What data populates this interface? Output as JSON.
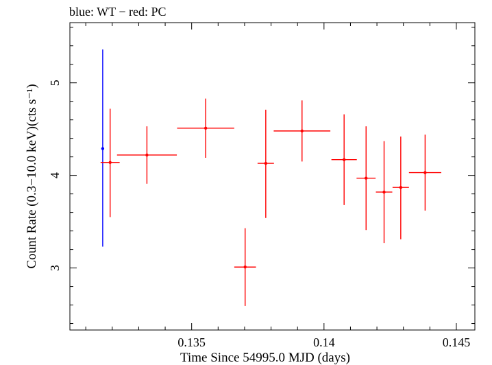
{
  "chart_data": {
    "type": "scatter",
    "title": "blue: WT − red: PC",
    "xlabel": "Time Since 54995.0 MJD (days)",
    "ylabel": "Count Rate (0.3−10.0 keV)(cts s⁻¹)",
    "xlim": [
      0.1304,
      0.1457
    ],
    "ylim": [
      2.33,
      5.65
    ],
    "xticks": [
      {
        "value": 0.135,
        "label": "0.135"
      },
      {
        "value": 0.14,
        "label": "0.14"
      },
      {
        "value": 0.145,
        "label": "0.145"
      }
    ],
    "yticks": [
      {
        "value": 3,
        "label": "3"
      },
      {
        "value": 4,
        "label": "4"
      },
      {
        "value": 5,
        "label": "5"
      }
    ],
    "grid": false,
    "series": [
      {
        "name": "WT",
        "color": "#0000ff",
        "points": [
          {
            "x": 0.13164,
            "y": 4.29,
            "xerr": 0.0,
            "yerr_low": 1.06,
            "yerr_high": 1.07
          }
        ]
      },
      {
        "name": "PC",
        "color": "#ff0000",
        "points": [
          {
            "x": 0.13192,
            "y": 4.14,
            "xerr": 0.00036,
            "yerr_low": 0.59,
            "yerr_high": 0.58
          },
          {
            "x": 0.13331,
            "y": 4.22,
            "xerr": 0.00113,
            "yerr_low": 0.31,
            "yerr_high": 0.31
          },
          {
            "x": 0.13553,
            "y": 4.51,
            "xerr": 0.00108,
            "yerr_low": 0.32,
            "yerr_high": 0.32
          },
          {
            "x": 0.13702,
            "y": 3.01,
            "xerr": 0.00041,
            "yerr_low": 0.42,
            "yerr_high": 0.42
          },
          {
            "x": 0.1378,
            "y": 4.13,
            "xerr": 0.00031,
            "yerr_low": 0.59,
            "yerr_high": 0.58
          },
          {
            "x": 0.13917,
            "y": 4.48,
            "xerr": 0.00107,
            "yerr_low": 0.33,
            "yerr_high": 0.33
          },
          {
            "x": 0.14076,
            "y": 4.17,
            "xerr": 0.00048,
            "yerr_low": 0.49,
            "yerr_high": 0.49
          },
          {
            "x": 0.14159,
            "y": 3.97,
            "xerr": 0.00036,
            "yerr_low": 0.56,
            "yerr_high": 0.56
          },
          {
            "x": 0.14227,
            "y": 3.82,
            "xerr": 0.00031,
            "yerr_low": 0.55,
            "yerr_high": 0.55
          },
          {
            "x": 0.1429,
            "y": 3.87,
            "xerr": 0.00031,
            "yerr_low": 0.56,
            "yerr_high": 0.55
          },
          {
            "x": 0.14382,
            "y": 4.03,
            "xerr": 0.00061,
            "yerr_low": 0.41,
            "yerr_high": 0.41
          }
        ]
      }
    ]
  }
}
